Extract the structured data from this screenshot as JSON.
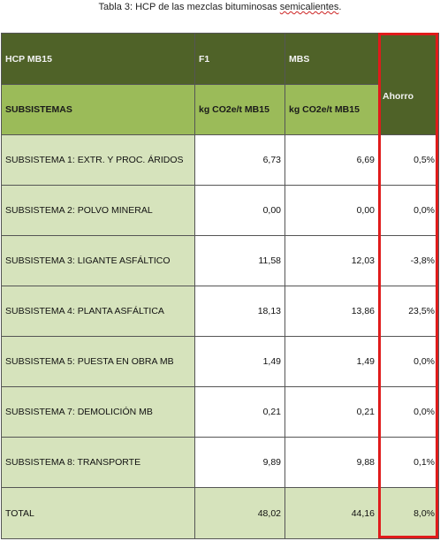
{
  "caption": {
    "prefix": "Tabla 3: HCP de las mezclas bituminosas ",
    "underlined": "semicalientes",
    "suffix": "."
  },
  "header": {
    "col1": "HCP MB15",
    "col2": "F1",
    "col3": "MBS",
    "col4": "Ahorro"
  },
  "subheader": {
    "col1": "SUBSISTEMAS",
    "col2": "kg CO2e/t MB15",
    "col3": "kg CO2e/t MB15"
  },
  "rows": [
    {
      "label": "SUBSISTEMA  1: EXTR. Y PROC. ÁRIDOS",
      "f1": "6,73",
      "mbs": "6,69",
      "ahorro": "0,5%"
    },
    {
      "label": "SUBSISTEMA  2: POLVO MINERAL",
      "f1": "0,00",
      "mbs": "0,00",
      "ahorro": "0,0%"
    },
    {
      "label": "SUBSISTEMA  3: LIGANTE ASFÁLTICO",
      "f1": "11,58",
      "mbs": "12,03",
      "ahorro": "-3,8%"
    },
    {
      "label": "SUBSISTEMA  4: PLANTA ASFÁLTICA",
      "f1": "18,13",
      "mbs": "13,86",
      "ahorro": "23,5%"
    },
    {
      "label": "SUBSISTEMA  5: PUESTA EN OBRA MB",
      "f1": "1,49",
      "mbs": "1,49",
      "ahorro": "0,0%"
    },
    {
      "label": "SUBSISTEMA  7: DEMOLICIÓN MB",
      "f1": "0,21",
      "mbs": "0,21",
      "ahorro": "0,0%"
    },
    {
      "label": "SUBSISTEMA  8: TRANSPORTE",
      "f1": "9,89",
      "mbs": "9,88",
      "ahorro": "0,1%"
    }
  ],
  "total": {
    "label": "TOTAL",
    "f1": "48,02",
    "mbs": "44,16",
    "ahorro": "8,0%"
  },
  "colors": {
    "header_dark_green": "#4f6228",
    "header_light_green": "#9bbb59",
    "row_label_green": "#d6e3bc",
    "highlight_red": "#e01b1b"
  }
}
